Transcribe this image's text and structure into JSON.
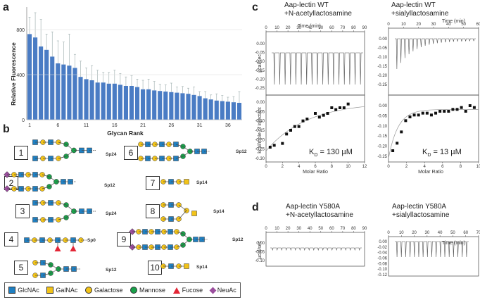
{
  "panels": {
    "a": "a",
    "b": "b",
    "c": "c",
    "d": "d"
  },
  "chart_data": {
    "type": "bar",
    "ylabel": "Relative Fluorescence",
    "xlabel": "Glycan Rank",
    "ylim": [
      0,
      1000
    ],
    "yticks": [
      "0",
      "400",
      "800"
    ],
    "xticks": [
      "1",
      "6",
      "11",
      "16",
      "21",
      "26",
      "31",
      "36"
    ],
    "values": [
      760,
      730,
      650,
      620,
      560,
      500,
      490,
      480,
      460,
      380,
      360,
      350,
      330,
      330,
      320,
      320,
      310,
      300,
      300,
      290,
      270,
      270,
      260,
      255,
      250,
      245,
      240,
      235,
      230,
      220,
      210,
      190,
      180,
      170,
      165,
      160,
      155,
      150
    ],
    "errors": [
      150,
      220,
      240,
      140,
      220,
      200,
      200,
      280,
      120,
      140,
      100,
      130,
      110,
      90,
      100,
      120,
      100,
      80,
      90,
      70,
      80,
      90,
      80,
      60,
      60,
      80,
      50,
      60,
      50,
      70,
      40,
      60,
      40,
      60,
      50,
      40,
      50,
      100
    ]
  },
  "glycans": {
    "numbers": [
      "1",
      "2",
      "3",
      "4",
      "5",
      "6",
      "7",
      "8",
      "9",
      "10"
    ],
    "spacers": [
      "Sp24",
      "Sp12",
      "Sp24",
      "Sp0",
      "Sp12",
      "Sp12",
      "Sp14",
      "Sp14",
      "Sp12",
      "Sp14"
    ]
  },
  "legend": {
    "glcnac": "GlcNAc",
    "galnac": "GalNAc",
    "galactose": "Galactose",
    "mannose": "Mannose",
    "fucose": "Fucose",
    "neuac": "NeuAc",
    "colors": {
      "glcnac": "#1f7fc1",
      "galnac": "#f2c318",
      "galactose": "#f2c318",
      "mannose": "#19a14a",
      "fucose": "#e32636",
      "neuac": "#9b4f9e"
    }
  },
  "itc": {
    "wt_lac_title_1": "Aap-lectin WT",
    "wt_lac_title_2": "+N-acetyllactosamine",
    "wt_sia_title_1": "Aap-lectin WT",
    "wt_sia_title_2": "+sialyllactosamine",
    "y580_lac_title_1": "Aap-lectin Y580A",
    "y580_lac_title_2": "+N-acetyllactosamine",
    "y580_sia_title_1": "Aap-lectin Y580A",
    "y580_sia_title_2": "+sialyllactosamine",
    "time_label": "Time (min)",
    "molar_ratio_label": "Molar Ratio",
    "ucal_label": "µcal/sec",
    "kcal_label": "kcal/mole of injectant",
    "kd_symbol": "K",
    "kd_sub": "D",
    "kd_wt_lac": " = 130 µM",
    "kd_wt_sia": " = 13 µM",
    "time_ticks_top": [
      "0",
      "10",
      "20",
      "30",
      "40",
      "50",
      "60",
      "70",
      "80",
      "90"
    ],
    "time_ticks_sia": [
      "0",
      "10",
      "20",
      "30",
      "40",
      "50",
      "60"
    ],
    "time_ticks_d_sia": [
      "0",
      "10",
      "20",
      "30",
      "40",
      "50",
      "60",
      "70"
    ],
    "mr_ticks": [
      "0",
      "2",
      "4",
      "6",
      "8",
      "10",
      "12"
    ],
    "mr_ticks_sia": [
      "0",
      "2",
      "4",
      "6",
      "8",
      "10"
    ],
    "raw_ticks": [
      "0.00",
      "-0.05",
      "-0.10",
      "-0.15",
      "-0.20",
      "-0.25"
    ],
    "kcal_ticks": [
      "0.00",
      "-0.05",
      "-0.10",
      "-0.15",
      "-0.20",
      "-0.25",
      "-0.30"
    ],
    "d_lac_ticks": [
      "0.00",
      "-0.05",
      "-0.10"
    ],
    "d_sia_ticks": [
      "0.00",
      "-0.02",
      "-0.04",
      "-0.06",
      "-0.08",
      "-0.10",
      "-0.12"
    ],
    "wt_lac_points": [
      [
        0.5,
        -0.24
      ],
      [
        1,
        -0.23
      ],
      [
        2,
        -0.22
      ],
      [
        2.5,
        -0.17
      ],
      [
        3,
        -0.15
      ],
      [
        3.5,
        -0.13
      ],
      [
        4,
        -0.13
      ],
      [
        4.5,
        -0.1
      ],
      [
        5,
        -0.09
      ],
      [
        6,
        -0.06
      ],
      [
        6.5,
        -0.08
      ],
      [
        7,
        -0.07
      ],
      [
        7.5,
        -0.06
      ],
      [
        8,
        -0.03
      ],
      [
        8.5,
        -0.04
      ],
      [
        9,
        -0.03
      ],
      [
        9.5,
        -0.03
      ],
      [
        10,
        -0.01
      ]
    ],
    "wt_sia_points": [
      [
        0.5,
        -0.22
      ],
      [
        1,
        -0.18
      ],
      [
        1.5,
        -0.12
      ],
      [
        2,
        -0.06
      ],
      [
        2.5,
        -0.04
      ],
      [
        3,
        -0.03
      ],
      [
        3.5,
        -0.03
      ],
      [
        4,
        -0.02
      ],
      [
        4.5,
        -0.02
      ],
      [
        5,
        -0.03
      ],
      [
        5.5,
        -0.02
      ],
      [
        6,
        -0.01
      ],
      [
        6.5,
        -0.01
      ],
      [
        7,
        -0.01
      ],
      [
        7.5,
        0.0
      ],
      [
        8,
        0.0
      ],
      [
        8.5,
        0.01
      ],
      [
        9,
        -0.01
      ],
      [
        9.5,
        0.02
      ],
      [
        10,
        0.01
      ]
    ]
  }
}
